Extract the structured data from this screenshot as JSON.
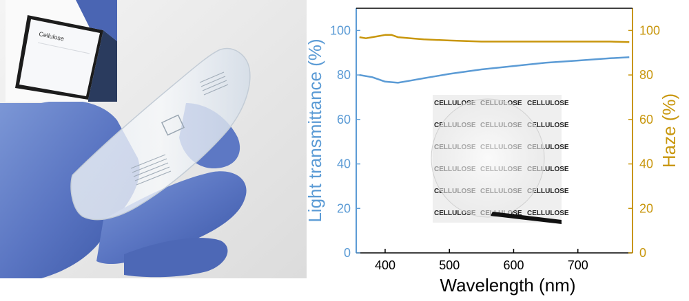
{
  "photo": {
    "phone_app_title": "Cellulose"
  },
  "chart_data": {
    "type": "line",
    "xlabel": "Wavelength (nm)",
    "ylabel_left": "Light transmittance (%)",
    "ylabel_right": "Haze (%)",
    "xlim": [
      355,
      785
    ],
    "ylim_left": [
      0,
      110
    ],
    "ylim_right": [
      0,
      110
    ],
    "xticks": [
      400,
      500,
      600,
      700
    ],
    "yticks_left": [
      0,
      20,
      40,
      60,
      80,
      100
    ],
    "yticks_right": [
      0,
      20,
      40,
      60,
      80,
      100
    ],
    "colors": {
      "transmittance": "#5b9bd5",
      "haze": "#c8960c",
      "axis": "#000000"
    },
    "series": [
      {
        "axis": "left",
        "color": "#5b9bd5",
        "x": [
          360,
          380,
          400,
          420,
          440,
          460,
          480,
          500,
          550,
          600,
          650,
          700,
          750,
          780
        ],
        "y": [
          80,
          79,
          77,
          76.5,
          77.5,
          78.5,
          79.5,
          80.5,
          82.5,
          84,
          85.5,
          86.5,
          87.5,
          88
        ]
      },
      {
        "axis": "right",
        "color": "#c8960c",
        "x": [
          360,
          370,
          380,
          390,
          400,
          410,
          420,
          440,
          460,
          500,
          550,
          600,
          650,
          700,
          750,
          780
        ],
        "y": [
          97,
          96.5,
          97,
          97.5,
          98,
          98,
          97,
          96.5,
          96,
          95.5,
          95,
          95,
          95,
          95,
          95,
          94.8
        ]
      }
    ],
    "inset_photo_text": [
      [
        "CELLULOSE",
        "CELLULOSE",
        "CELLULOSE"
      ],
      [
        "CELLULOSE",
        "CELLULOSE",
        "CELLULOSE"
      ],
      [
        "CELLULOSE",
        "CELLULOSE",
        "CELLULOSE"
      ],
      [
        "CELLULOSE",
        "CELLULOSE",
        "CELLULOSE"
      ],
      [
        "CELLULOSE",
        "CELLULOSE",
        "CELLULOSE"
      ],
      [
        "CELLULOSE",
        "CELLULOSE",
        "CELLULOSE"
      ]
    ]
  }
}
